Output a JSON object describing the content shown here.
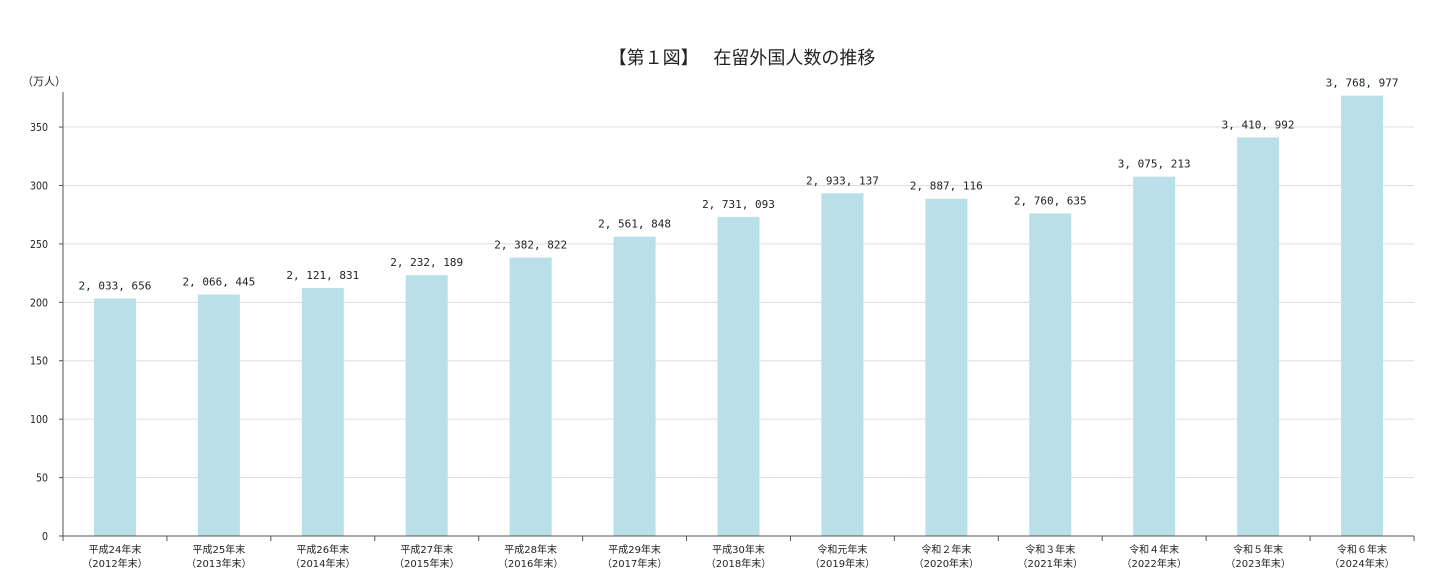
{
  "chart_data": {
    "type": "bar",
    "title": "【第１図】　 在留外国人数の推移",
    "y_unit_label": "（万人）",
    "ylim": [
      0,
      380
    ],
    "yticks": [
      0,
      50,
      100,
      150,
      200,
      250,
      300,
      350
    ],
    "grid": true,
    "bar_color": "#b9dfe8",
    "categories": [
      [
        "平成24年末",
        "（2012年末）"
      ],
      [
        "平成25年末",
        "（2013年末）"
      ],
      [
        "平成26年末",
        "（2014年末）"
      ],
      [
        "平成27年末",
        "（2015年末）"
      ],
      [
        "平成28年末",
        "（2016年末）"
      ],
      [
        "平成29年末",
        "（2017年末）"
      ],
      [
        "平成30年末",
        "（2018年末）"
      ],
      [
        "令和元年末",
        "（2019年末）"
      ],
      [
        "令和２年末",
        "（2020年末）"
      ],
      [
        "令和３年末",
        "（2021年末）"
      ],
      [
        "令和４年末",
        "（2022年末）"
      ],
      [
        "令和５年末",
        "（2023年末）"
      ],
      [
        "令和６年末",
        "（2024年末）"
      ]
    ],
    "values": [
      203.3656,
      206.6445,
      212.1831,
      223.2189,
      238.2822,
      256.1848,
      273.1093,
      293.3137,
      288.7116,
      276.0635,
      307.5213,
      341.0992,
      376.8977
    ],
    "data_labels": [
      "2, 033, 656",
      "2, 066, 445",
      "2, 121, 831",
      "2, 232, 189",
      "2, 382, 822",
      "2, 561, 848",
      "2, 731, 093",
      "2, 933, 137",
      "2, 887, 116",
      "2, 760, 635",
      "3, 075, 213",
      "3, 410, 992",
      "3, 768, 977"
    ]
  }
}
